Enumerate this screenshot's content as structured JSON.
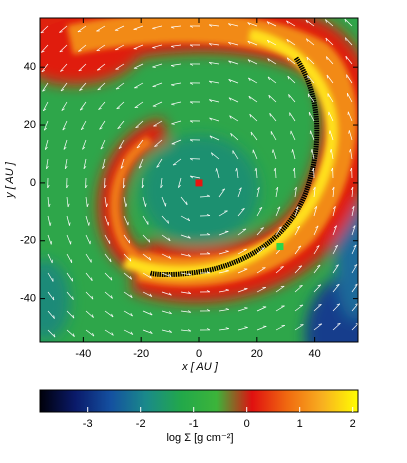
{
  "chart_data": {
    "type": "heatmap",
    "xlabel": "x [ AU ]",
    "ylabel": "y [ AU ]",
    "xlim": [
      -55,
      55
    ],
    "ylim": [
      -55,
      57
    ],
    "xticks": [
      -40,
      -20,
      0,
      20,
      40
    ],
    "yticks": [
      -40,
      -20,
      0,
      20,
      40
    ],
    "points": [
      {
        "x": 0,
        "y": 0,
        "color": "#e8150f"
      },
      {
        "x": 28,
        "y": -22,
        "color": "#2bd64a"
      }
    ],
    "colorbar": {
      "label": "log Σ [g cm⁻²]",
      "lim": [
        -3.9,
        2.1
      ],
      "ticks": [
        -3,
        -2,
        -1,
        0,
        1,
        2
      ],
      "colors": [
        "#00000a",
        "#0a1a6a",
        "#1450a0",
        "#1a8a8a",
        "#22a84a",
        "#3cb43a",
        "#e01010",
        "#f06a10",
        "#f8b020",
        "#ffff00"
      ]
    }
  }
}
